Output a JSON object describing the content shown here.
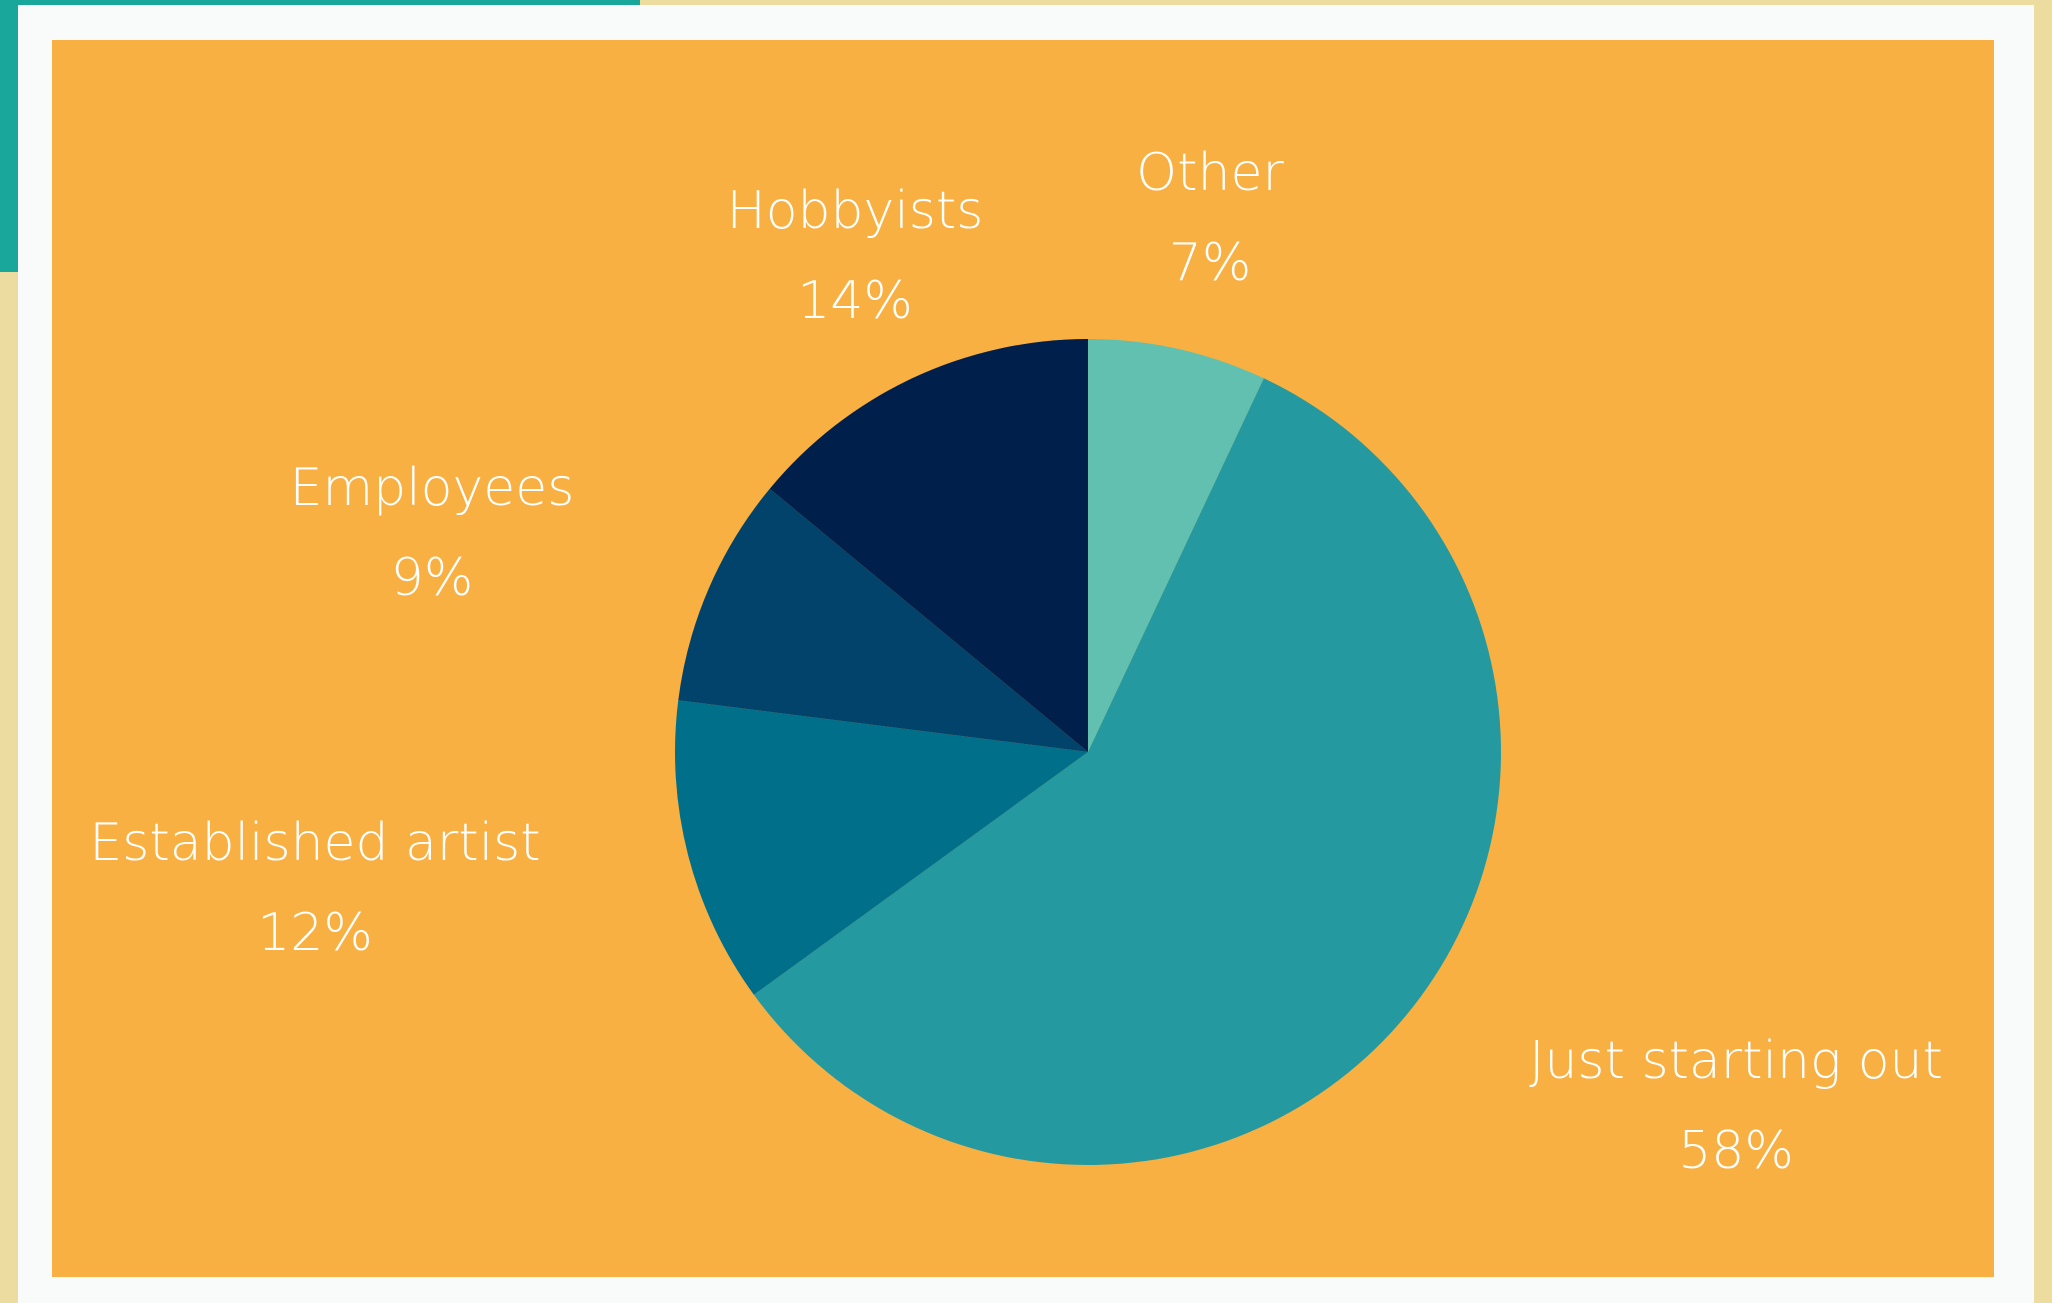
{
  "chart_data": {
    "type": "pie",
    "title": "",
    "start_angle_deg": 0,
    "direction": "clockwise",
    "slices": [
      {
        "label": "Other",
        "value": 7,
        "value_label": "7%",
        "color": "#61c0af"
      },
      {
        "label": "Just starting out",
        "value": 58,
        "value_label": "58%",
        "color": "#2599a0"
      },
      {
        "label": "Established artist",
        "value": 12,
        "value_label": "12%",
        "color": "#006f8a"
      },
      {
        "label": "Employees",
        "value": 9,
        "value_label": "9%",
        "color": "#02436b"
      },
      {
        "label": "Hobbyists",
        "value": 14,
        "value_label": "14%",
        "color": "#001f4a"
      }
    ]
  },
  "colors": {
    "panel": "#f9b042",
    "frame": "#f9fafa",
    "page": "#ecdca0",
    "accent": "#19a79b",
    "text": "#ffffff"
  }
}
